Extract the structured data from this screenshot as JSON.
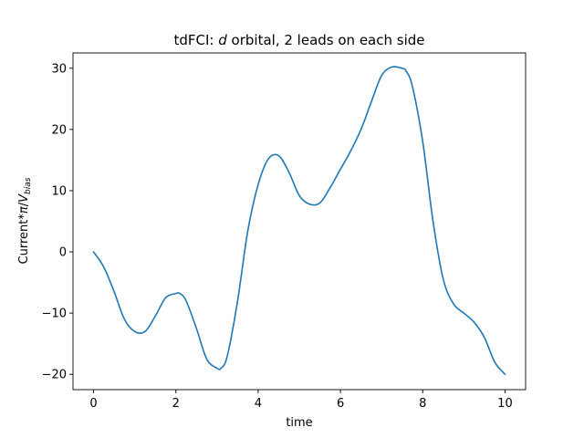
{
  "chart_data": {
    "type": "line",
    "title_parts": [
      "tdFCI: ",
      "d",
      " orbital, 2 leads on each side"
    ],
    "xlabel": "time",
    "ylabel_parts": [
      "Current*",
      "π",
      "/",
      "V",
      "bias"
    ],
    "xlim": [
      -0.5,
      10.5
    ],
    "ylim": [
      -22.5,
      32.5
    ],
    "xticks": [
      0,
      2,
      4,
      6,
      8,
      10
    ],
    "yticks": [
      -20,
      -10,
      0,
      10,
      20,
      30
    ],
    "grid": false,
    "line_color": "#1f77b4",
    "series": [
      {
        "x": [
          0,
          0.25,
          0.5,
          0.75,
          1.0,
          1.25,
          1.5,
          1.75,
          2.0,
          2.1,
          2.25,
          2.5,
          2.75,
          3.0,
          3.1,
          3.25,
          3.5,
          3.75,
          4.0,
          4.25,
          4.5,
          4.75,
          5.0,
          5.25,
          5.5,
          5.75,
          6.0,
          6.25,
          6.5,
          6.75,
          7.0,
          7.25,
          7.5,
          7.6,
          7.75,
          8.0,
          8.25,
          8.5,
          8.75,
          9.0,
          9.25,
          9.5,
          9.75,
          10.0
        ],
        "y": [
          0,
          -2.5,
          -6.5,
          -11.0,
          -13.0,
          -13.0,
          -10.5,
          -7.5,
          -6.8,
          -6.8,
          -8.0,
          -12.5,
          -17.5,
          -19.0,
          -19.0,
          -17.0,
          -8.0,
          3.5,
          11.0,
          15.2,
          15.7,
          13.0,
          9.2,
          7.8,
          8.0,
          10.5,
          13.5,
          16.5,
          20.0,
          24.5,
          28.8,
          30.2,
          30.0,
          29.5,
          27.0,
          18.0,
          5.0,
          -4.5,
          -8.5,
          -10.0,
          -11.5,
          -14.0,
          -18.0,
          -20.0
        ]
      }
    ]
  }
}
